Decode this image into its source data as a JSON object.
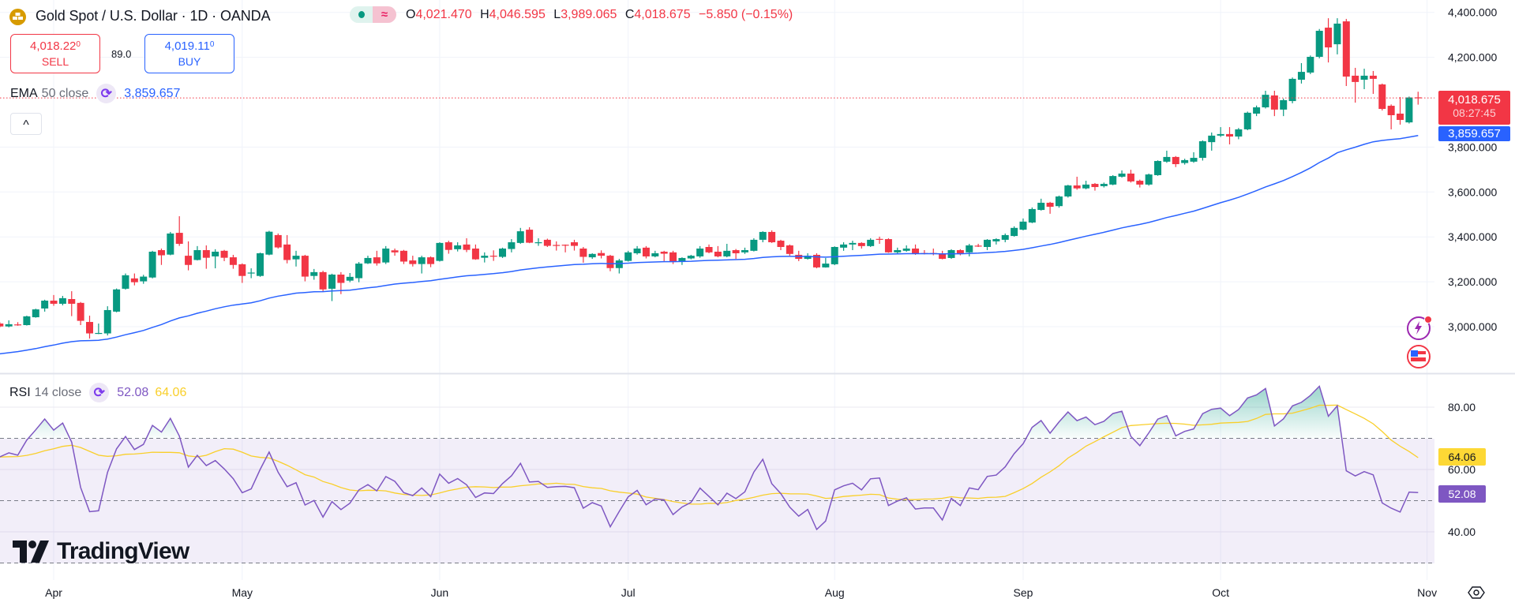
{
  "header": {
    "title": "Gold Spot / U.S. Dollar · 1D · OANDA",
    "logo_icon": "gold-bars-icon",
    "market_status_icon": "market-open-dot-icon",
    "delay_icon": "approx-icon",
    "delay_symbol": "≈",
    "ohlc": {
      "o_label": "O",
      "o": "4,021.470",
      "h_label": "H",
      "h": "4,046.595",
      "l_label": "L",
      "l": "3,989.065",
      "c_label": "C",
      "c": "4,018.675",
      "change": "−5.850 (−0.15%)"
    }
  },
  "trade": {
    "sell": {
      "price": "4,018.22",
      "fraction": "0",
      "label": "SELL"
    },
    "spread": "89.0",
    "buy": {
      "price": "4,019.11",
      "fraction": "0",
      "label": "BUY"
    }
  },
  "ema_legend": {
    "name": "EMA",
    "params": "50 close",
    "value": "3,859.657"
  },
  "collapse_symbol": "^",
  "rsi_legend": {
    "name": "RSI",
    "params": "14 close",
    "value": "52.08",
    "ma_value": "64.06"
  },
  "price_axis": {
    "ticks": [
      "4,400.000",
      "4,200.000",
      "3,800.000",
      "3,600.000",
      "3,400.000",
      "3,200.000",
      "3,000.000"
    ],
    "last_price": "4,018.675",
    "countdown": "08:27:45",
    "ema_tag": "3,859.657"
  },
  "rsi_axis": {
    "ticks": [
      "80.00",
      "60.00",
      "40.00"
    ],
    "ma_tag": "64.06",
    "rsi_tag": "52.08"
  },
  "time_axis": [
    "Apr",
    "May",
    "Jun",
    "Jul",
    "Aug",
    "Sep",
    "Oct",
    "Nov"
  ],
  "watermark": "TradingView",
  "colors": {
    "up": "#089981",
    "down": "#f23645",
    "ema": "#2962ff",
    "rsi": "#7e57c2",
    "rsi_ma": "#f9cf2a",
    "gold": "#d79b00"
  },
  "chart_data": {
    "type": "candlestick",
    "symbol": "Gold Spot / U.S. Dollar",
    "interval": "1D",
    "price_range": [
      2850,
      4440
    ],
    "rsi_range": [
      25,
      90
    ],
    "rsi_bands": [
      70,
      50,
      30
    ],
    "indicators": [
      "EMA 50 close",
      "RSI 14 close"
    ],
    "ohlc": [
      [
        3014,
        3020,
        2997,
        3001
      ],
      [
        3001,
        3028,
        2997,
        3011
      ],
      [
        3010,
        3020,
        3004,
        3008
      ],
      [
        3007,
        3049,
        3005,
        3046
      ],
      [
        3042,
        3080,
        3040,
        3077
      ],
      [
        3081,
        3120,
        3067,
        3116
      ],
      [
        3116,
        3141,
        3093,
        3102
      ],
      [
        3102,
        3137,
        3095,
        3127
      ],
      [
        3123,
        3158,
        3047,
        3102
      ],
      [
        3106,
        3110,
        3007,
        3026
      ],
      [
        3021,
        3049,
        2947,
        2970
      ],
      [
        2970,
        3014,
        2967,
        2972
      ],
      [
        2970,
        3091,
        2961,
        3074
      ],
      [
        3067,
        3170,
        3064,
        3166
      ],
      [
        3169,
        3237,
        3165,
        3229
      ],
      [
        3215,
        3237,
        3184,
        3198
      ],
      [
        3202,
        3231,
        3191,
        3223
      ],
      [
        3219,
        3338,
        3215,
        3334
      ],
      [
        3341,
        3348,
        3275,
        3318
      ],
      [
        3321,
        3422,
        3318,
        3415
      ],
      [
        3418,
        3492,
        3360,
        3369
      ],
      [
        3316,
        3380,
        3251,
        3275
      ],
      [
        3297,
        3359,
        3295,
        3341
      ],
      [
        3341,
        3362,
        3258,
        3307
      ],
      [
        3313,
        3345,
        3260,
        3334
      ],
      [
        3338,
        3342,
        3292,
        3307
      ],
      [
        3309,
        3320,
        3258,
        3275
      ],
      [
        3278,
        3282,
        3195,
        3226
      ],
      [
        3239,
        3260,
        3216,
        3241
      ],
      [
        3226,
        3330,
        3222,
        3327
      ],
      [
        3321,
        3427,
        3318,
        3423
      ],
      [
        3408,
        3415,
        3348,
        3353
      ],
      [
        3366,
        3408,
        3282,
        3297
      ],
      [
        3300,
        3338,
        3268,
        3316
      ],
      [
        3316,
        3320,
        3202,
        3223
      ],
      [
        3226,
        3257,
        3209,
        3243
      ],
      [
        3243,
        3249,
        3158,
        3166
      ],
      [
        3169,
        3236,
        3114,
        3232
      ],
      [
        3232,
        3243,
        3145,
        3195
      ],
      [
        3205,
        3239,
        3198,
        3222
      ],
      [
        3216,
        3288,
        3198,
        3281
      ],
      [
        3282,
        3316,
        3279,
        3306
      ],
      [
        3309,
        3338,
        3272,
        3282
      ],
      [
        3286,
        3359,
        3279,
        3348
      ],
      [
        3340,
        3348,
        3316,
        3331
      ],
      [
        3338,
        3342,
        3279,
        3290
      ],
      [
        3295,
        3316,
        3268,
        3279
      ],
      [
        3279,
        3316,
        3237,
        3309
      ],
      [
        3309,
        3313,
        3265,
        3279
      ],
      [
        3293,
        3376,
        3290,
        3373
      ],
      [
        3376,
        3383,
        3325,
        3342
      ],
      [
        3345,
        3376,
        3335,
        3362
      ],
      [
        3366,
        3394,
        3332,
        3342
      ],
      [
        3348,
        3366,
        3298,
        3300
      ],
      [
        3307,
        3331,
        3286,
        3316
      ],
      [
        3316,
        3340,
        3293,
        3314
      ],
      [
        3311,
        3352,
        3306,
        3348
      ],
      [
        3346,
        3390,
        3331,
        3376
      ],
      [
        3373,
        3440,
        3369,
        3425
      ],
      [
        3432,
        3443,
        3372,
        3374
      ],
      [
        3374,
        3394,
        3360,
        3376
      ],
      [
        3387,
        3392,
        3355,
        3360
      ],
      [
        3364,
        3380,
        3339,
        3362
      ],
      [
        3365,
        3366,
        3331,
        3363
      ],
      [
        3376,
        3387,
        3339,
        3360
      ],
      [
        3348,
        3355,
        3285,
        3311
      ],
      [
        3309,
        3327,
        3302,
        3324
      ],
      [
        3328,
        3340,
        3304,
        3316
      ],
      [
        3316,
        3320,
        3247,
        3261
      ],
      [
        3261,
        3302,
        3237,
        3295
      ],
      [
        3293,
        3338,
        3290,
        3331
      ],
      [
        3327,
        3359,
        3321,
        3348
      ],
      [
        3352,
        3359,
        3304,
        3313
      ],
      [
        3313,
        3338,
        3309,
        3327
      ],
      [
        3334,
        3338,
        3292,
        3325
      ],
      [
        3331,
        3338,
        3279,
        3290
      ],
      [
        3292,
        3309,
        3275,
        3306
      ],
      [
        3304,
        3320,
        3300,
        3316
      ],
      [
        3313,
        3359,
        3307,
        3348
      ],
      [
        3355,
        3366,
        3327,
        3331
      ],
      [
        3334,
        3359,
        3309,
        3313
      ],
      [
        3313,
        3369,
        3309,
        3338
      ],
      [
        3341,
        3346,
        3302,
        3327
      ],
      [
        3331,
        3352,
        3324,
        3341
      ],
      [
        3338,
        3394,
        3335,
        3387
      ],
      [
        3387,
        3425,
        3376,
        3422
      ],
      [
        3422,
        3429,
        3373,
        3376
      ],
      [
        3383,
        3387,
        3341,
        3355
      ],
      [
        3362,
        3366,
        3316,
        3324
      ],
      [
        3320,
        3338,
        3292,
        3302
      ],
      [
        3302,
        3327,
        3299,
        3316
      ],
      [
        3320,
        3327,
        3260,
        3264
      ],
      [
        3264,
        3306,
        3263,
        3281
      ],
      [
        3278,
        3358,
        3274,
        3355
      ],
      [
        3352,
        3376,
        3338,
        3366
      ],
      [
        3366,
        3383,
        3341,
        3373
      ],
      [
        3373,
        3376,
        3348,
        3359
      ],
      [
        3359,
        3394,
        3355,
        3387
      ],
      [
        3391,
        3401,
        3369,
        3389
      ],
      [
        3390,
        3394,
        3329,
        3331
      ],
      [
        3331,
        3352,
        3327,
        3341
      ],
      [
        3338,
        3362,
        3334,
        3348
      ],
      [
        3348,
        3366,
        3320,
        3324
      ],
      [
        3328,
        3341,
        3322,
        3326
      ],
      [
        3328,
        3348,
        3318,
        3326
      ],
      [
        3324,
        3338,
        3300,
        3302
      ],
      [
        3306,
        3345,
        3302,
        3341
      ],
      [
        3341,
        3345,
        3318,
        3327
      ],
      [
        3331,
        3369,
        3313,
        3362
      ],
      [
        3361,
        3369,
        3355,
        3359
      ],
      [
        3355,
        3390,
        3341,
        3387
      ],
      [
        3380,
        3394,
        3366,
        3390
      ],
      [
        3387,
        3415,
        3376,
        3408
      ],
      [
        3404,
        3447,
        3401,
        3440
      ],
      [
        3432,
        3482,
        3429,
        3468
      ],
      [
        3464,
        3531,
        3461,
        3524
      ],
      [
        3520,
        3570,
        3517,
        3552
      ],
      [
        3552,
        3556,
        3503,
        3534
      ],
      [
        3537,
        3584,
        3530,
        3580
      ],
      [
        3580,
        3632,
        3575,
        3629
      ],
      [
        3629,
        3668,
        3610,
        3616
      ],
      [
        3616,
        3650,
        3612,
        3633
      ],
      [
        3636,
        3640,
        3606,
        3622
      ],
      [
        3626,
        3642,
        3620,
        3636
      ],
      [
        3633,
        3675,
        3630,
        3671
      ],
      [
        3668,
        3696,
        3664,
        3682
      ],
      [
        3682,
        3699,
        3642,
        3647
      ],
      [
        3650,
        3655,
        3620,
        3633
      ],
      [
        3633,
        3682,
        3628,
        3678
      ],
      [
        3675,
        3741,
        3672,
        3738
      ],
      [
        3735,
        3784,
        3730,
        3756
      ],
      [
        3756,
        3760,
        3711,
        3724
      ],
      [
        3729,
        3748,
        3722,
        3742
      ],
      [
        3735,
        3777,
        3730,
        3752
      ],
      [
        3752,
        3830,
        3740,
        3826
      ],
      [
        3822,
        3865,
        3784,
        3851
      ],
      [
        3851,
        3889,
        3845,
        3858
      ],
      [
        3858,
        3889,
        3812,
        3847
      ],
      [
        3847,
        3885,
        3835,
        3879
      ],
      [
        3879,
        3958,
        3875,
        3953
      ],
      [
        3949,
        3985,
        3938,
        3977
      ],
      [
        3977,
        4051,
        3972,
        4033
      ],
      [
        4030,
        4051,
        3938,
        3967
      ],
      [
        3967,
        4016,
        3938,
        4009
      ],
      [
        4005,
        4110,
        3995,
        4104
      ],
      [
        4100,
        4174,
        4083,
        4135
      ],
      [
        4132,
        4208,
        4125,
        4202
      ],
      [
        4202,
        4326,
        4195,
        4318
      ],
      [
        4332,
        4374,
        4177,
        4244
      ],
      [
        4258,
        4374,
        4213,
        4350
      ],
      [
        4360,
        4371,
        4072,
        4114
      ],
      [
        4118,
        4153,
        3998,
        4090
      ],
      [
        4100,
        4149,
        4058,
        4118
      ],
      [
        4118,
        4139,
        4037,
        4104
      ],
      [
        4079,
        4083,
        3963,
        3970
      ],
      [
        3984,
        3990,
        3879,
        3942
      ],
      [
        3949,
        4023,
        3900,
        3921
      ],
      [
        3910,
        4025,
        3905,
        4021
      ],
      [
        4021.47,
        4046.595,
        3989.065,
        4018.675
      ]
    ],
    "ema_last": 3859.657,
    "rsi_last": 52.08,
    "rsi_ma_last": 64.06
  }
}
